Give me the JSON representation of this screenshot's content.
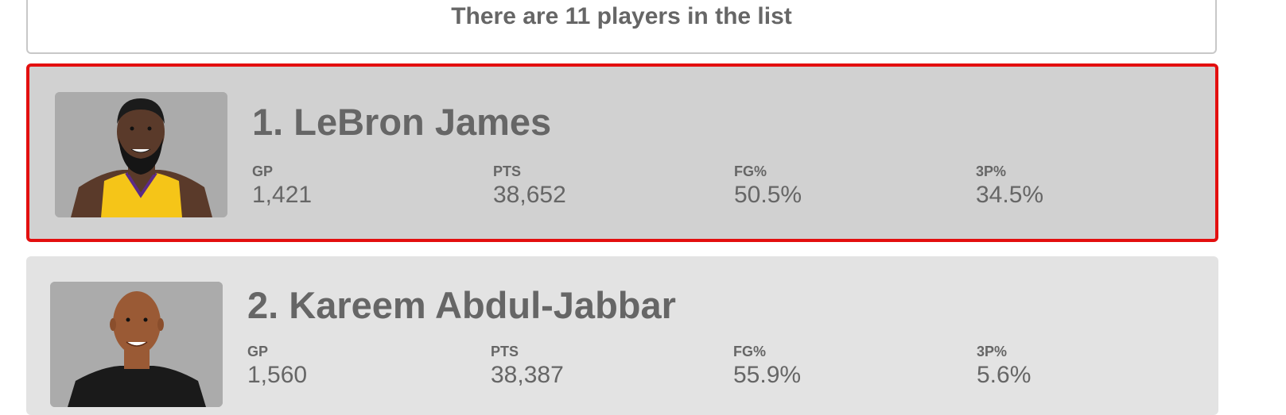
{
  "header": {
    "count_text": "There are 11 players in the list"
  },
  "players": [
    {
      "rank_name": "1. LeBron James",
      "selected": true,
      "stats": {
        "gp_label": "GP",
        "gp_value": "1,421",
        "pts_label": "PTS",
        "pts_value": "38,652",
        "fg_label": "FG%",
        "fg_value": "50.5%",
        "tp_label": "3P%",
        "tp_value": "34.5%"
      },
      "colors": {
        "jersey": "#f5c518",
        "skin": "#5a3a2a"
      }
    },
    {
      "rank_name": "2. Kareem Abdul-Jabbar",
      "selected": false,
      "stats": {
        "gp_label": "GP",
        "gp_value": "1,560",
        "pts_label": "PTS",
        "pts_value": "38,387",
        "fg_label": "FG%",
        "fg_value": "55.9%",
        "tp_label": "3P%",
        "tp_value": "5.6%"
      },
      "colors": {
        "jersey": "#1a1a1a",
        "skin": "#9a5a35"
      }
    }
  ],
  "theme": {
    "selected_border": "#e30f0f",
    "selected_bg": "#d1d1d1",
    "card_bg": "#e3e3e3",
    "text": "#666666"
  }
}
